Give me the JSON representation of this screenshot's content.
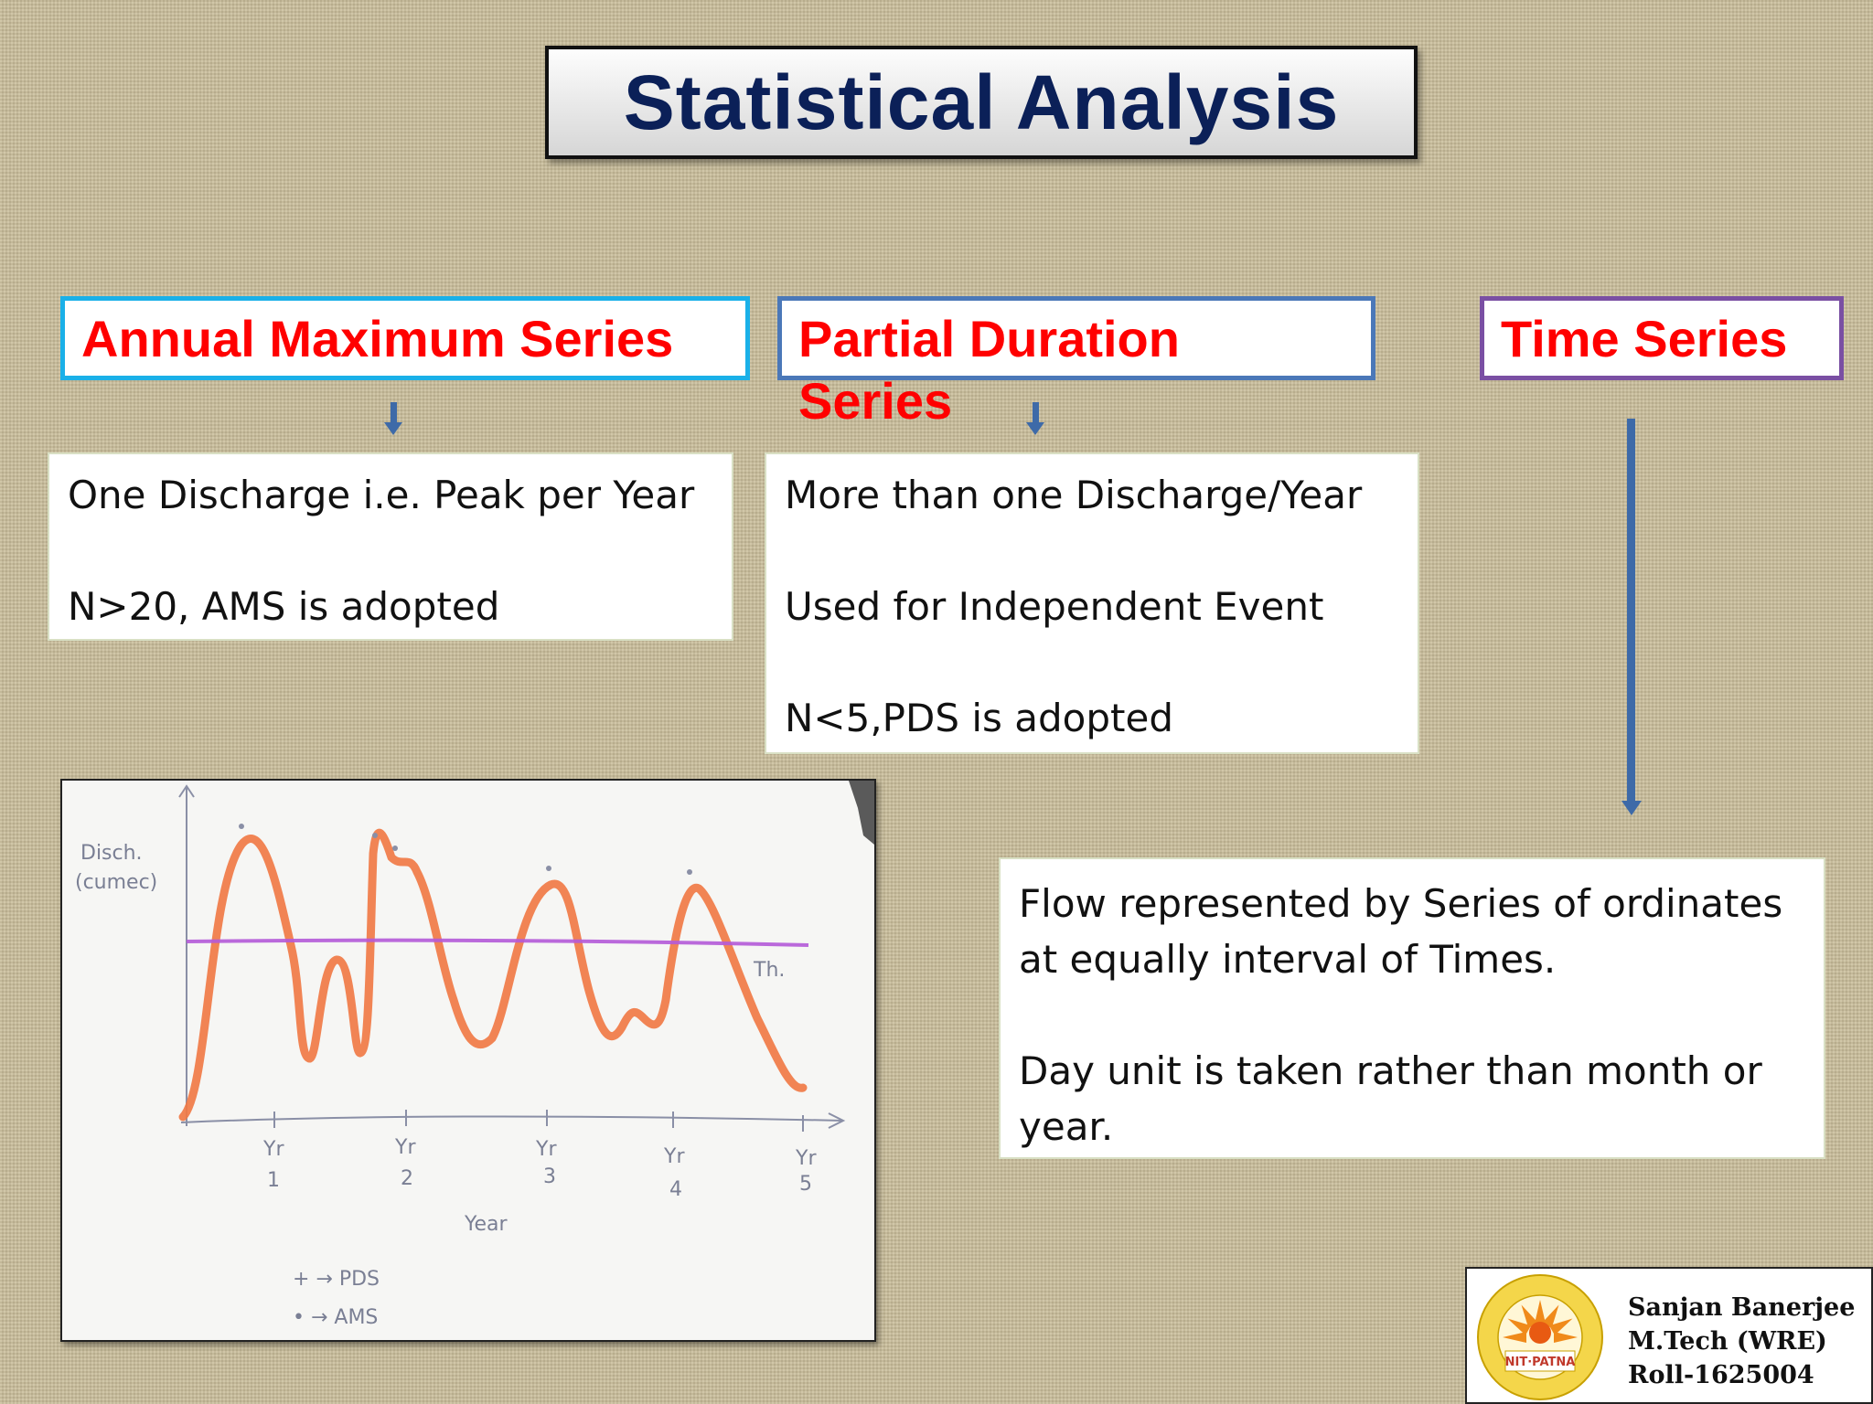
{
  "slide": {
    "title": "Statistical Analysis"
  },
  "columns": {
    "ams": {
      "header": "Annual Maximum Series",
      "lines": [
        "One  Discharge i.e. Peak per Year",
        "N>20, AMS is adopted"
      ]
    },
    "pds": {
      "header_line1": "Partial Duration",
      "header_line2": "Series",
      "lines": [
        "More than one Discharge/Year",
        "Used for Independent Event",
        "N<5,PDS is adopted"
      ]
    },
    "ts": {
      "header": "Time Series",
      "paragraph1": "Flow represented by Series of ordinates at equally interval of Times.",
      "paragraph2": "Day unit is taken rather than month or year."
    }
  },
  "sketch": {
    "y_label_1": "Disch.",
    "y_label_2": "(cumec)",
    "threshold_label": "Th.",
    "x_label": "Year",
    "ticks": [
      {
        "top": "Yr",
        "bottom": "1"
      },
      {
        "top": "Yr",
        "bottom": "2"
      },
      {
        "top": "Yr",
        "bottom": "3"
      },
      {
        "top": "Yr",
        "bottom": "4"
      },
      {
        "top": "Yr",
        "bottom": "5"
      }
    ],
    "legend_1": "+ → PDS",
    "legend_2": "• → AMS"
  },
  "footer": {
    "logo_text": "NIT·PATNA",
    "author_name": "Sanjan Banerjee",
    "author_degree": "M.Tech (WRE)",
    "author_roll": "Roll-1625004"
  },
  "colors": {
    "title_text": "#0b2058",
    "header_text": "#ff0000",
    "ams_border": "#1ab0e8",
    "pds_border": "#4b78b8",
    "ts_border": "#7a4fa3",
    "arrow": "#3e6aa8",
    "hydrograph": "#f07a45",
    "threshold": "#b45ad8"
  }
}
